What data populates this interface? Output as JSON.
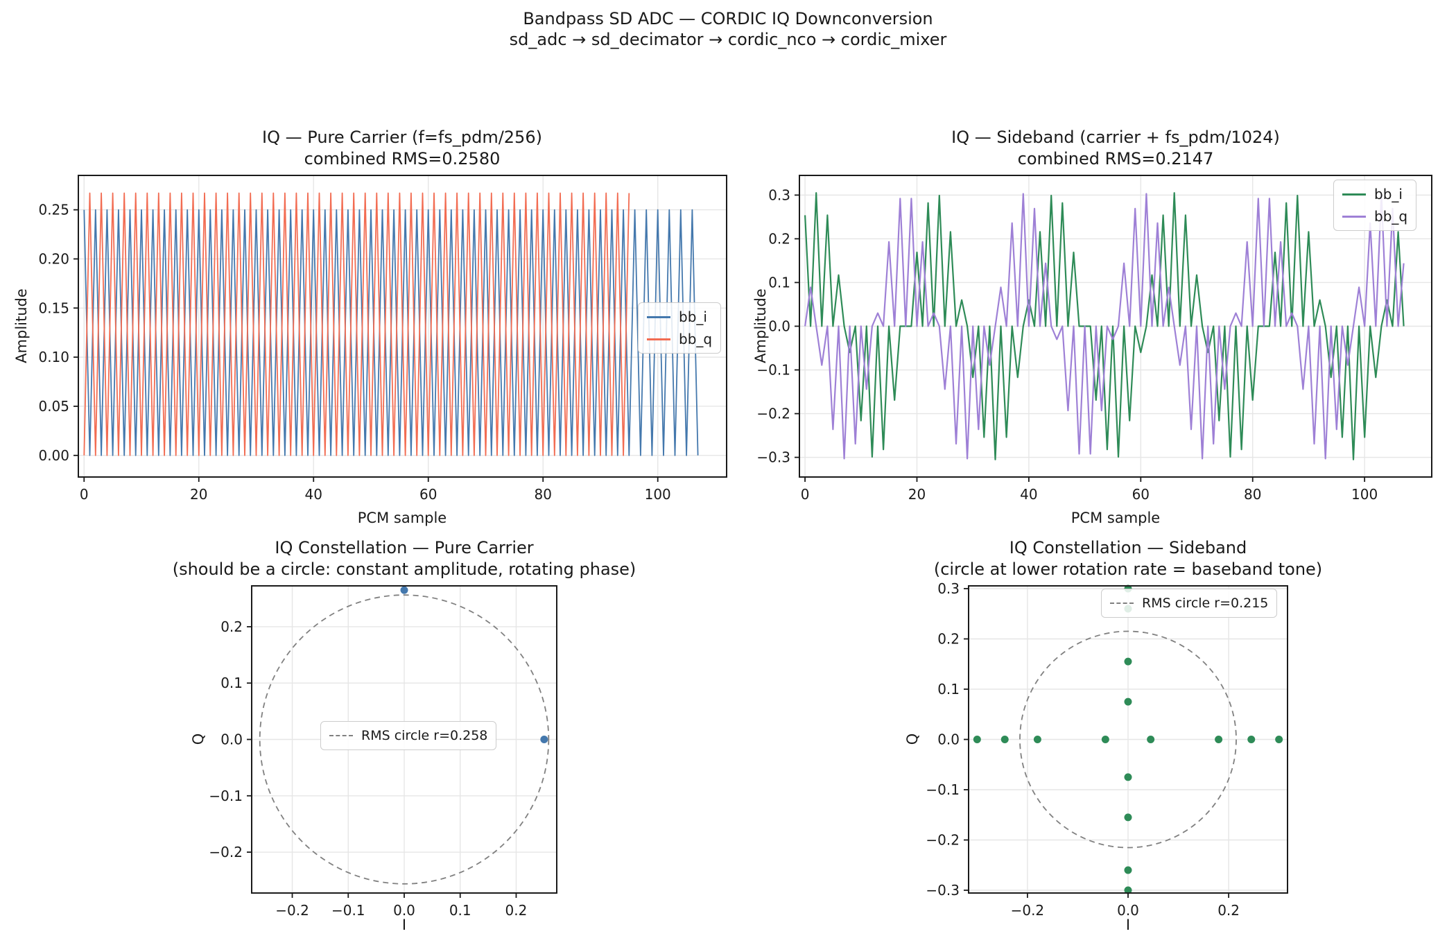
{
  "figure": {
    "suptitle1": "Bandpass SD ADC — CORDIC IQ Downconversion",
    "suptitle2": "sd_adc → sd_decimator → cordic_nco → cordic_mixer"
  },
  "chart_data": [
    {
      "id": "tl",
      "type": "line",
      "title": "IQ — Pure Carrier (f=fs_pdm/256)",
      "subtitle": "combined RMS=0.2580",
      "xlabel": "PCM sample",
      "ylabel": "Amplitude",
      "xlim": [
        -1,
        112
      ],
      "ylim": [
        -0.022,
        0.285
      ],
      "grid": true,
      "legend_position": "center right",
      "xticks": [
        0,
        20,
        40,
        60,
        80,
        100
      ],
      "xtick_labels": [
        "0",
        "20",
        "40",
        "60",
        "80",
        "100"
      ],
      "yticks": [
        0.0,
        0.05,
        0.1,
        0.15,
        0.2,
        0.25
      ],
      "ytick_labels": [
        "0.00",
        "0.05",
        "0.10",
        "0.15",
        "0.20",
        "0.25"
      ],
      "x_start": 0,
      "x_step": 1,
      "line_width": 1.8,
      "series": [
        {
          "name": "bb_i",
          "color": "#4478ad",
          "values": [
            0.25,
            0,
            0.25,
            0,
            0.25,
            0,
            0.25,
            0,
            0.25,
            0,
            0.25,
            0,
            0.25,
            0,
            0.25,
            0,
            0.25,
            0,
            0.25,
            0,
            0.25,
            0,
            0.25,
            0,
            0.25,
            0,
            0.25,
            0,
            0.25,
            0,
            0.25,
            0,
            0.25,
            0,
            0.25,
            0,
            0.25,
            0,
            0.25,
            0,
            0.25,
            0,
            0.25,
            0,
            0.25,
            0,
            0.25,
            0,
            0.25,
            0,
            0.25,
            0,
            0.25,
            0,
            0.25,
            0,
            0.25,
            0,
            0.25,
            0,
            0.25,
            0,
            0.25,
            0,
            0.25,
            0,
            0.25,
            0,
            0.25,
            0,
            0.25,
            0,
            0.25,
            0,
            0.25,
            0,
            0.25,
            0,
            0.25,
            0,
            0.25,
            0,
            0.25,
            0,
            0.25,
            0,
            0.25,
            0,
            0.25,
            0,
            0.25,
            0,
            0.25,
            0,
            0.25,
            0,
            0.25,
            0,
            0.25,
            0,
            0.25,
            0,
            0.25,
            0,
            0.25,
            0,
            0.25,
            0
          ]
        },
        {
          "name": "bb_q",
          "color": "#f26c52",
          "values": [
            0,
            0.267,
            0,
            0.267,
            0,
            0.267,
            0,
            0.267,
            0,
            0.267,
            0,
            0.267,
            0,
            0.267,
            0,
            0.267,
            0,
            0.267,
            0,
            0.267,
            0,
            0.267,
            0,
            0.267,
            0,
            0.267,
            0,
            0.267,
            0,
            0.267,
            0,
            0.267,
            0,
            0.267,
            0,
            0.267,
            0,
            0.267,
            0,
            0.267,
            0,
            0.267,
            0,
            0.267,
            0,
            0.267,
            0,
            0.267,
            0,
            0.267,
            0,
            0.267,
            0,
            0.267,
            0,
            0.267,
            0,
            0.267,
            0,
            0.267,
            0,
            0.267,
            0,
            0.267,
            0,
            0.267,
            0,
            0.267,
            0,
            0.267,
            0,
            0.267,
            0,
            0.267,
            0,
            0.267,
            0,
            0.267,
            0,
            0.267,
            0,
            0.267,
            0,
            0.267,
            0,
            0.267,
            0,
            0.267,
            0,
            0.267,
            0,
            0.267,
            0,
            0.267,
            0,
            0.267
          ]
        }
      ]
    },
    {
      "id": "tr",
      "type": "line",
      "title": "IQ — Sideband (carrier + fs_pdm/1024)",
      "subtitle": "combined RMS=0.2147",
      "xlabel": "PCM sample",
      "ylabel": "Amplitude",
      "xlim": [
        -1,
        112
      ],
      "ylim": [
        -0.345,
        0.345
      ],
      "grid": true,
      "legend_position": "upper right",
      "xticks": [
        0,
        20,
        40,
        60,
        80,
        100
      ],
      "xtick_labels": [
        "0",
        "20",
        "40",
        "60",
        "80",
        "100"
      ],
      "yticks": [
        -0.3,
        -0.2,
        -0.1,
        0.0,
        0.1,
        0.2,
        0.3
      ],
      "ytick_labels": [
        "−0.3",
        "−0.2",
        "−0.1",
        "0.0",
        "0.1",
        "0.2",
        "0.3"
      ],
      "x_start": 0,
      "x_step": 1,
      "line_width": 2.2,
      "series": [
        {
          "name": "bb_i",
          "color": "#2e8b57",
          "values": [
            0.254,
            0,
            0.305,
            0,
            0.254,
            0,
            0.117,
            0,
            -0.06,
            0,
            -0.216,
            0,
            -0.299,
            0,
            -0.282,
            0,
            -0.169,
            0,
            0,
            0,
            0.169,
            0,
            0.282,
            0,
            0.299,
            0,
            0.216,
            0,
            0.06,
            0,
            -0.117,
            0,
            -0.254,
            0,
            -0.305,
            0,
            -0.254,
            0,
            -0.117,
            0,
            0.06,
            0,
            0.216,
            0,
            0.299,
            0,
            0.282,
            0,
            0.169,
            0,
            0,
            0,
            -0.169,
            0,
            -0.282,
            0,
            -0.299,
            0,
            -0.216,
            0,
            -0.06,
            0,
            0.117,
            0,
            0.254,
            0,
            0.305,
            0,
            0.254,
            0,
            0.117,
            0,
            -0.06,
            0,
            -0.216,
            0,
            -0.299,
            0,
            -0.282,
            0,
            -0.169,
            0,
            0,
            0,
            0.169,
            0,
            0.282,
            0,
            0.299,
            0,
            0.216,
            0,
            0.06,
            0,
            -0.117,
            0,
            -0.254,
            0,
            -0.305,
            0,
            -0.254,
            0,
            -0.117,
            0,
            0.06,
            0,
            0.216,
            0
          ]
        },
        {
          "name": "bb_q",
          "color": "#9e80d6",
          "values": [
            0,
            0.089,
            0,
            -0.089,
            0,
            -0.236,
            0,
            -0.303,
            0,
            -0.269,
            0,
            -0.144,
            0,
            0.03,
            0,
            0.193,
            0,
            0.292,
            0,
            0.292,
            0,
            0.193,
            0,
            0.03,
            0,
            -0.144,
            0,
            -0.269,
            0,
            -0.303,
            0,
            -0.236,
            0,
            -0.089,
            0,
            0.089,
            0,
            0.236,
            0,
            0.303,
            0,
            0.269,
            0,
            0.144,
            0,
            -0.03,
            0,
            -0.193,
            0,
            -0.292,
            0,
            -0.292,
            0,
            -0.193,
            0,
            -0.03,
            0,
            0.144,
            0,
            0.269,
            0,
            0.303,
            0,
            0.236,
            0,
            0.089,
            0,
            -0.089,
            0,
            -0.236,
            0,
            -0.303,
            0,
            -0.269,
            0,
            -0.144,
            0,
            0.03,
            0,
            0.193,
            0,
            0.292,
            0,
            0.292,
            0,
            0.193,
            0,
            0.03,
            0,
            -0.144,
            0,
            -0.269,
            0,
            -0.303,
            0,
            -0.236,
            0,
            -0.089,
            0,
            0.089,
            0,
            0.236,
            0,
            0.303,
            0,
            0.269,
            0,
            0.144
          ]
        }
      ]
    },
    {
      "id": "bl",
      "type": "scatter",
      "title": "IQ Constellation — Pure Carrier",
      "subtitle": "(should be a circle: constant amplitude, rotating phase)",
      "xlabel": "I",
      "ylabel": "Q",
      "xlim": [
        -0.2725,
        0.2725
      ],
      "ylim": [
        -0.2725,
        0.2725
      ],
      "grid": true,
      "legend_position": "center",
      "legend_label": "RMS circle r=0.258",
      "xticks": [
        -0.2,
        -0.1,
        0.0,
        0.1,
        0.2
      ],
      "xtick_labels": [
        "−0.2",
        "−0.1",
        "0.0",
        "0.1",
        "0.2"
      ],
      "yticks": [
        -0.2,
        -0.1,
        0.0,
        0.1,
        0.2
      ],
      "ytick_labels": [
        "−0.2",
        "−0.1",
        "0.0",
        "0.1",
        "0.2"
      ],
      "point_color": "#4478ad",
      "points": [
        [
          0,
          0.265
        ],
        [
          0.25,
          0
        ]
      ],
      "rms_circle": {
        "r": 0.258,
        "color": "#808080"
      }
    },
    {
      "id": "br",
      "type": "scatter",
      "title": "IQ Constellation — Sideband",
      "subtitle": "(circle at lower rotation rate = baseband tone)",
      "xlabel": "I",
      "ylabel": "Q",
      "xlim": [
        -0.317,
        0.317
      ],
      "ylim": [
        -0.3055,
        0.3055
      ],
      "grid": true,
      "legend_position": "upper right",
      "legend_label": "RMS circle r=0.215",
      "xticks": [
        -0.2,
        0.0,
        0.2
      ],
      "xtick_labels": [
        "−0.2",
        "0.0",
        "0.2"
      ],
      "yticks": [
        -0.3,
        -0.2,
        -0.1,
        0.0,
        0.1,
        0.2,
        0.3
      ],
      "ytick_labels": [
        "−0.3",
        "−0.2",
        "−0.1",
        "0.0",
        "0.1",
        "0.2",
        "0.3"
      ],
      "point_color": "#2e8b57",
      "points": [
        [
          -0.3,
          0
        ],
        [
          -0.245,
          0
        ],
        [
          -0.18,
          0
        ],
        [
          -0.045,
          0
        ],
        [
          0.045,
          0
        ],
        [
          0.18,
          0
        ],
        [
          0.245,
          0
        ],
        [
          0.3,
          0
        ],
        [
          0,
          0.3
        ],
        [
          0,
          0.26
        ],
        [
          0,
          0.155
        ],
        [
          0,
          0.075
        ],
        [
          0,
          -0.075
        ],
        [
          0,
          -0.155
        ],
        [
          0,
          -0.26
        ],
        [
          0,
          -0.3
        ]
      ],
      "rms_circle": {
        "r": 0.215,
        "color": "#808080"
      }
    }
  ]
}
